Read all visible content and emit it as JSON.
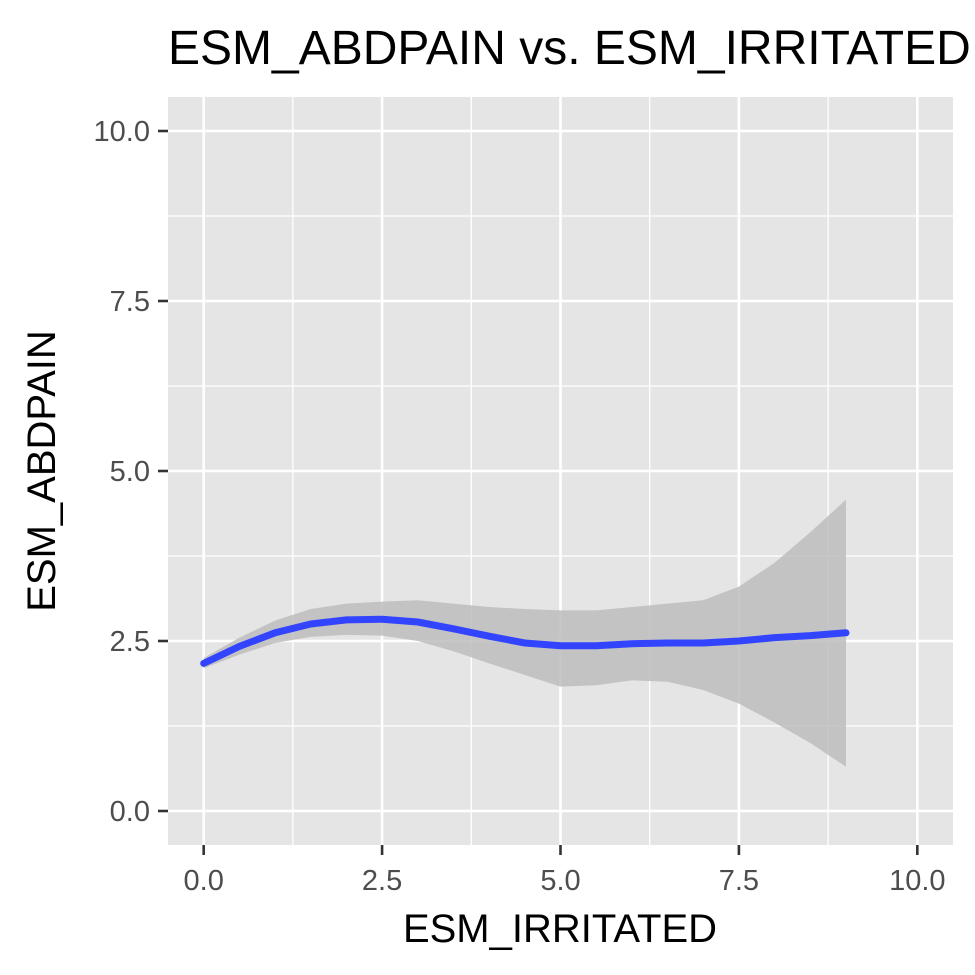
{
  "chart_data": {
    "type": "line",
    "title": "ESM_ABDPAIN vs. ESM_IRRITATED",
    "xlabel": "ESM_IRRITATED",
    "ylabel": "ESM_ABDPAIN",
    "xlim": [
      -0.5,
      10.5
    ],
    "ylim": [
      -0.5,
      10.5
    ],
    "xticks": [
      0.0,
      2.5,
      5.0,
      7.5,
      10.0
    ],
    "yticks": [
      0.0,
      2.5,
      5.0,
      7.5,
      10.0
    ],
    "xtick_labels": [
      "0.0",
      "2.5",
      "5.0",
      "7.5",
      "10.0"
    ],
    "ytick_labels": [
      "0.0",
      "2.5",
      "5.0",
      "7.5",
      "10.0"
    ],
    "grid": true,
    "colors": {
      "panel": "#e5e5e5",
      "grid": "#ffffff",
      "line": "#3344ff",
      "ribbon": "#bdbdbd"
    },
    "series": [
      {
        "x": [
          0.0,
          0.5,
          1.0,
          1.5,
          2.0,
          2.5,
          3.0,
          3.5,
          4.0,
          4.5,
          5.0,
          5.5,
          6.0,
          6.5,
          7.0,
          7.5,
          8.0,
          8.5,
          9.0
        ],
        "y": [
          2.17,
          2.42,
          2.62,
          2.75,
          2.81,
          2.82,
          2.78,
          2.68,
          2.57,
          2.47,
          2.43,
          2.43,
          2.46,
          2.47,
          2.47,
          2.5,
          2.55,
          2.58,
          2.62
        ],
        "lower": [
          2.1,
          2.3,
          2.47,
          2.56,
          2.59,
          2.58,
          2.5,
          2.35,
          2.17,
          2.0,
          1.83,
          1.85,
          1.92,
          1.9,
          1.78,
          1.58,
          1.3,
          1.0,
          0.65
        ],
        "upper": [
          2.25,
          2.55,
          2.8,
          2.97,
          3.05,
          3.08,
          3.1,
          3.05,
          3.0,
          2.97,
          2.95,
          2.95,
          3.0,
          3.05,
          3.1,
          3.3,
          3.65,
          4.1,
          4.58
        ]
      }
    ]
  }
}
